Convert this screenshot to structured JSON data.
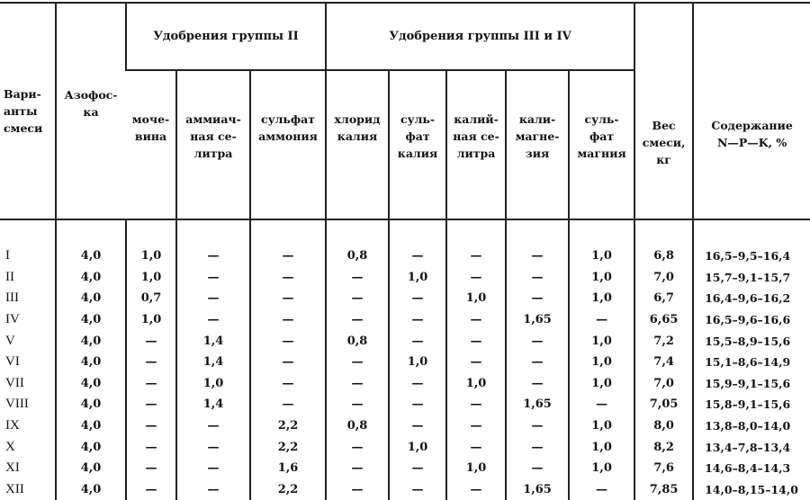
{
  "headers": {
    "variant": "Вари-\nанты\nсмеси",
    "azofoska": "Азофос-\nка",
    "group2": "Удобрения группы II",
    "group34": "Удобрения группы III и IV",
    "weight": "Вес\nсмеси,\nкг",
    "npk": "Содержание\nN—P—K, %",
    "group2_cols": [
      "моче-\nвина",
      "аммиач-\nная се-\nлитра",
      "сульфат\nаммония"
    ],
    "group34_cols": [
      "хлорид\nкалия",
      "суль-\nфат\nкалия",
      "калий-\nная се-\nлитра",
      "кали-\nмагне-\nзия",
      "суль-\nфат\nмагния"
    ]
  },
  "rows": [
    [
      "I",
      "4,0",
      "1,0",
      "—",
      "—",
      "0,8",
      "—",
      "—",
      "—",
      "1,0",
      "6,8",
      "16,5–9,5–16,4"
    ],
    [
      "II",
      "4,0",
      "1,0",
      "—",
      "—",
      "—",
      "1,0",
      "—",
      "—",
      "1,0",
      "7,0",
      "15,7–9,1–15,7"
    ],
    [
      "III",
      "4,0",
      "0,7",
      "—",
      "—",
      "—",
      "—",
      "1,0",
      "—",
      "1,0",
      "6,7",
      "16,4–9,6–16,2"
    ],
    [
      "IV",
      "4,0",
      "1,0",
      "—",
      "—",
      "—",
      "—",
      "—",
      "1,65",
      "—",
      "6,65",
      "16,5–9,6–16,6"
    ],
    [
      "V",
      "4,0",
      "—",
      "1,4",
      "—",
      "0,8",
      "—",
      "—",
      "—",
      "1,0",
      "7,2",
      "15,5–8,9–15,6"
    ],
    [
      "VI",
      "4,0",
      "—",
      "1,4",
      "—",
      "—",
      "1,0",
      "—",
      "—",
      "1,0",
      "7,4",
      "15,1–8,6–14,9"
    ],
    [
      "VII",
      "4,0",
      "—",
      "1,0",
      "—",
      "—",
      "—",
      "1,0",
      "—",
      "1,0",
      "7,0",
      "15,9–9,1–15,6"
    ],
    [
      "VIII",
      "4,0",
      "—",
      "1,4",
      "—",
      "—",
      "—",
      "—",
      "1,65",
      "—",
      "7,05",
      "15,8–9,1–15,6"
    ],
    [
      "IX",
      "4,0",
      "—",
      "—",
      "2,2",
      "0,8",
      "—",
      "—",
      "—",
      "1,0",
      "8,0",
      "13,8–8,0–14,0"
    ],
    [
      "X",
      "4,0",
      "—",
      "—",
      "2,2",
      "—",
      "1,0",
      "—",
      "—",
      "1,0",
      "8,2",
      "13,4–7,8–13,4"
    ],
    [
      "XI",
      "4,0",
      "—",
      "—",
      "1,6",
      "—",
      "—",
      "1,0",
      "—",
      "1,0",
      "7,6",
      "14,6–8,4–14,3"
    ],
    [
      "XII",
      "4,0",
      "—",
      "—",
      "2,2",
      "—",
      "—",
      "—",
      "1,65",
      "—",
      "7,85",
      "14,0–8,15–14,0"
    ]
  ]
}
